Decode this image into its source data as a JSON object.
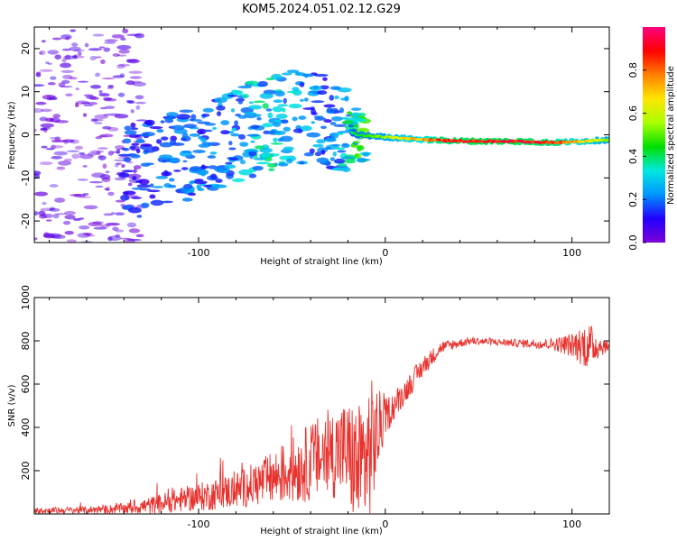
{
  "title": "KOM5.2024.051.02.12.G29",
  "colors": {
    "snr_line": "#e8322e",
    "axis": "#000000",
    "colormap": [
      "#7d00d6",
      "#2200ff",
      "#0094ff",
      "#00e8e0",
      "#00e000",
      "#a8ff00",
      "#ffe600",
      "#ff8000",
      "#ff0000",
      "#ff0080"
    ]
  },
  "chart_data": [
    {
      "type": "heatmap",
      "xlabel": "Height of straight line (km)",
      "ylabel": "Frequency (Hz)",
      "xlim": [
        -188,
        120
      ],
      "ylim": [
        -25,
        25
      ],
      "xticks": [
        -100,
        0,
        100
      ],
      "yticks": [
        -20,
        -10,
        0,
        10,
        20
      ],
      "grid": false,
      "colorbar": {
        "label": "Normalized spectral amplitude",
        "range": [
          0,
          1
        ],
        "ticks": [
          "0.0",
          "0.2",
          "0.4",
          "0.6",
          "0.8"
        ]
      },
      "ridge": [
        {
          "x": -135,
          "y": -8.5,
          "amp": 0.15
        },
        {
          "x": -120,
          "y": -7.0,
          "amp": 0.18
        },
        {
          "x": -105,
          "y": -4.5,
          "amp": 0.2
        },
        {
          "x": -90,
          "y": -2.0,
          "amp": 0.22
        },
        {
          "x": -75,
          "y": 0.5,
          "amp": 0.3
        },
        {
          "x": -60,
          "y": 3.0,
          "amp": 0.32
        },
        {
          "x": -45,
          "y": 4.5,
          "amp": 0.25
        },
        {
          "x": -30,
          "y": 2.5,
          "amp": 0.2
        },
        {
          "x": -15,
          "y": 0.0,
          "amp": 0.4
        },
        {
          "x": 0,
          "y": -0.5,
          "amp": 0.55
        },
        {
          "x": 15,
          "y": -1.0,
          "amp": 0.7
        },
        {
          "x": 30,
          "y": -1.3,
          "amp": 0.85
        },
        {
          "x": 50,
          "y": -1.5,
          "amp": 0.9
        },
        {
          "x": 70,
          "y": -1.5,
          "amp": 0.9
        },
        {
          "x": 90,
          "y": -1.8,
          "amp": 0.85
        },
        {
          "x": 105,
          "y": -1.5,
          "amp": 0.7
        },
        {
          "x": 118,
          "y": -1.2,
          "amp": 0.55
        }
      ],
      "noise_region": {
        "xmin": -188,
        "xmax": -130,
        "ymin": -25,
        "ymax": 25,
        "amp": 0.08
      }
    },
    {
      "type": "line",
      "xlabel": "Height of straight line (km)",
      "ylabel": "SNR (v/v)",
      "xlim": [
        -188,
        120
      ],
      "ylim": [
        0,
        1000
      ],
      "xticks": [
        -100,
        0,
        100
      ],
      "yticks": [
        200,
        400,
        600,
        800,
        1000
      ],
      "grid": false,
      "series": [
        {
          "envelope": [
            {
              "x": -188,
              "y": 15,
              "spread": 20
            },
            {
              "x": -160,
              "y": 18,
              "spread": 25
            },
            {
              "x": -140,
              "y": 25,
              "spread": 35
            },
            {
              "x": -125,
              "y": 40,
              "spread": 60
            },
            {
              "x": -110,
              "y": 65,
              "spread": 80
            },
            {
              "x": -95,
              "y": 85,
              "spread": 100
            },
            {
              "x": -80,
              "y": 110,
              "spread": 120
            },
            {
              "x": -65,
              "y": 150,
              "spread": 160
            },
            {
              "x": -50,
              "y": 200,
              "spread": 220
            },
            {
              "x": -35,
              "y": 260,
              "spread": 280
            },
            {
              "x": -22,
              "y": 300,
              "spread": 320
            },
            {
              "x": -14,
              "y": 200,
              "spread": 450
            },
            {
              "x": -8,
              "y": 300,
              "spread": 480
            },
            {
              "x": 0,
              "y": 450,
              "spread": 120
            },
            {
              "x": 10,
              "y": 560,
              "spread": 80
            },
            {
              "x": 20,
              "y": 680,
              "spread": 70
            },
            {
              "x": 30,
              "y": 770,
              "spread": 40
            },
            {
              "x": 45,
              "y": 800,
              "spread": 25
            },
            {
              "x": 70,
              "y": 790,
              "spread": 25
            },
            {
              "x": 90,
              "y": 785,
              "spread": 40
            },
            {
              "x": 100,
              "y": 780,
              "spread": 80
            },
            {
              "x": 108,
              "y": 780,
              "spread": 160
            },
            {
              "x": 120,
              "y": 775,
              "spread": 20
            }
          ]
        }
      ]
    }
  ]
}
